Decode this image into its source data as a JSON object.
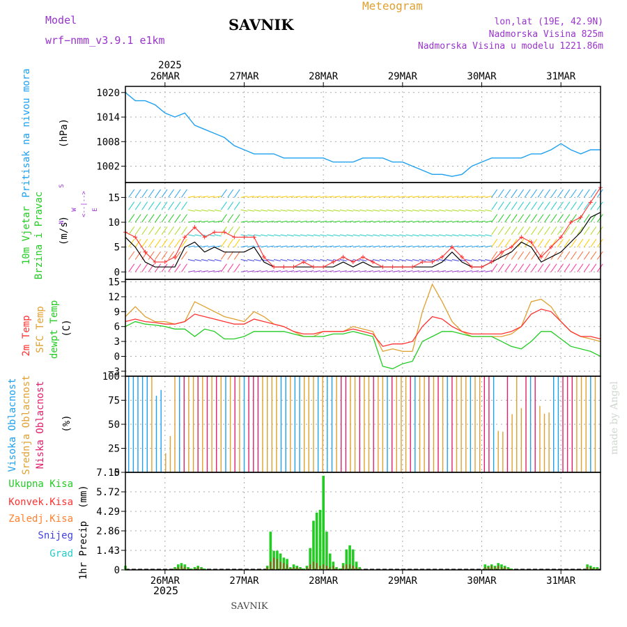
{
  "header": {
    "model_label": "Model",
    "model_name": "wrf−nmm_v3.9.1 e1km",
    "station": "SAVNIK",
    "meteogram": "Meteogram",
    "lonlat": "lon,lat (19E, 42.9N)",
    "altitude": "Nadmorska Visina 825m",
    "model_altitude": "Nadmorska Visina u modelu 1221.86m"
  },
  "footer": {
    "station": "SAVNIK",
    "watermark": "made by Angel"
  },
  "time_axis": {
    "year": "2025",
    "days": [
      "26MAR",
      "27MAR",
      "28MAR",
      "29MAR",
      "30MAR",
      "31MAR"
    ],
    "day_hours": [
      12,
      36,
      60,
      84,
      108,
      132
    ],
    "range": [
      0,
      144
    ]
  },
  "colors": {
    "pressure": "#1ea0f0",
    "wind_speed": "#000000",
    "gust": "#ff3030",
    "temp2m": "#ff3030",
    "sfc_temp": "#e0a030",
    "dewpoint": "#22cc22",
    "cloud_high": "#1ea0f0",
    "cloud_mid": "#e0a030",
    "cloud_low": "#e0206a",
    "rain_total": "#22cc22",
    "rain_conv": "#ff3030",
    "freezing": "#ff8030",
    "snow": "#4040e0",
    "hail": "#22cccc",
    "wind_label": "#22cc22",
    "compass": "#9933cc"
  },
  "chart_data": [
    {
      "type": "line",
      "ylabel": "Pritisak na nivou mora",
      "unit": "(hPa)",
      "yticks": [
        1002,
        1008,
        1014,
        1020
      ],
      "ylim": [
        998,
        1021.5
      ],
      "x": [
        0,
        3,
        6,
        9,
        12,
        15,
        18,
        21,
        24,
        27,
        30,
        33,
        36,
        39,
        42,
        45,
        48,
        51,
        54,
        57,
        60,
        63,
        66,
        69,
        72,
        75,
        78,
        81,
        84,
        87,
        90,
        93,
        96,
        99,
        102,
        105,
        108,
        111,
        114,
        117,
        120,
        123,
        126,
        129,
        132,
        135,
        138,
        141,
        144
      ],
      "series": [
        {
          "values": [
            1020,
            1018,
            1018,
            1017,
            1015,
            1014,
            1015,
            1012,
            1011,
            1010,
            1009,
            1007,
            1006,
            1005,
            1005,
            1005,
            1004,
            1004,
            1004,
            1004,
            1004,
            1003,
            1003,
            1003,
            1004,
            1004,
            1004,
            1003,
            1003,
            1002,
            1001,
            1000,
            1000,
            999.5,
            1000,
            1002,
            1003,
            1004,
            1004,
            1004,
            1004,
            1005,
            1005,
            1006,
            1007.5,
            1006,
            1005,
            1006,
            1006
          ]
        }
      ]
    },
    {
      "type": "line",
      "ylabel": "10m Vjetar Brzina i Pravac",
      "unit": "(m/s)",
      "yticks": [
        0,
        5,
        10,
        15
      ],
      "ylim": [
        -1.5,
        18
      ],
      "x": [
        0,
        3,
        6,
        9,
        12,
        15,
        18,
        21,
        24,
        27,
        30,
        33,
        36,
        39,
        42,
        45,
        48,
        51,
        54,
        57,
        60,
        63,
        66,
        69,
        72,
        75,
        78,
        81,
        84,
        87,
        90,
        93,
        96,
        99,
        102,
        105,
        108,
        111,
        114,
        117,
        120,
        123,
        126,
        129,
        132,
        135,
        138,
        141,
        144
      ],
      "series": [
        {
          "name": "speed",
          "values": [
            7,
            5,
            2,
            1,
            1,
            1,
            5,
            6,
            4,
            5,
            4,
            4,
            4,
            5,
            2,
            1,
            1,
            1,
            1,
            1,
            1,
            1,
            2,
            1,
            2,
            1,
            1,
            1,
            1,
            1,
            1,
            1,
            2,
            4,
            2,
            1,
            1,
            2,
            3,
            4,
            6,
            5,
            2,
            3,
            4,
            6,
            8,
            11,
            12
          ]
        },
        {
          "name": "gust",
          "values": [
            8,
            7,
            4,
            2,
            2,
            3,
            7,
            9,
            7,
            8,
            8,
            7,
            7,
            7,
            3,
            1,
            1,
            1,
            2,
            1,
            1,
            2,
            3,
            2,
            3,
            2,
            1,
            1,
            1,
            1,
            2,
            2,
            3,
            5,
            3,
            1,
            1,
            2,
            4,
            5,
            7,
            6,
            3,
            5,
            7,
            10,
            11,
            14,
            17
          ]
        }
      ]
    },
    {
      "type": "line",
      "ylabels": [
        "2m Temp",
        "SFC Temp",
        "dewpt Temp"
      ],
      "unit": "(C)",
      "yticks": [
        -3,
        0,
        3,
        6,
        9,
        12,
        15
      ],
      "ylim": [
        -4,
        15.5
      ],
      "x": [
        0,
        3,
        6,
        9,
        12,
        15,
        18,
        21,
        24,
        27,
        30,
        33,
        36,
        39,
        42,
        45,
        48,
        51,
        54,
        57,
        60,
        63,
        66,
        69,
        72,
        75,
        78,
        81,
        84,
        87,
        90,
        93,
        96,
        99,
        102,
        105,
        108,
        111,
        114,
        117,
        120,
        123,
        126,
        129,
        132,
        135,
        138,
        141,
        144
      ],
      "series": [
        {
          "name": "2m Temp",
          "values": [
            7,
            7.5,
            7,
            6.8,
            6.5,
            6.5,
            7,
            8.5,
            8,
            7.5,
            7,
            6.5,
            6.5,
            7.5,
            7,
            6.5,
            6,
            5,
            4.5,
            4.5,
            5,
            5,
            5,
            5.5,
            5,
            4.5,
            2,
            2.5,
            2.5,
            3,
            6,
            8,
            7.5,
            6,
            5,
            4.5,
            4.5,
            4.5,
            4.5,
            5,
            6,
            8.5,
            9.5,
            9,
            7,
            5,
            4,
            4,
            3.5
          ]
        },
        {
          "name": "SFC Temp",
          "values": [
            8,
            10,
            8,
            7,
            7,
            6.5,
            7,
            11,
            10,
            9,
            8,
            7.5,
            7,
            9,
            8,
            6.5,
            6,
            5,
            4,
            4,
            5,
            5,
            5,
            6,
            5.5,
            5,
            1,
            1.5,
            1,
            1,
            9,
            14.5,
            11,
            7,
            5,
            4,
            4,
            4,
            4,
            4.5,
            6,
            11,
            11.5,
            10,
            7,
            5,
            4,
            3.5,
            3
          ]
        },
        {
          "name": "dewpt Temp",
          "values": [
            6,
            7,
            6.5,
            6.3,
            6,
            5.5,
            5.5,
            4,
            5.5,
            5,
            3.5,
            3.5,
            4,
            5,
            5,
            5,
            5,
            4.5,
            4,
            4,
            4,
            4.5,
            4.5,
            5,
            4.5,
            4,
            -2,
            -2.5,
            -1.5,
            -1,
            3,
            4,
            5,
            5,
            4.5,
            4,
            4,
            4,
            3,
            2,
            1.5,
            3,
            5,
            5,
            3.5,
            2,
            1.5,
            1,
            0
          ]
        }
      ]
    },
    {
      "type": "bar",
      "ylabels": [
        "Visoka Oblacnost",
        "Srednja Oblacnost",
        "Niska Oblacnost"
      ],
      "unit": "(%)",
      "yticks": [
        0,
        25,
        50,
        75,
        100
      ],
      "ylim": [
        0,
        100
      ]
    },
    {
      "type": "bar",
      "ylabel": "1hr Precip",
      "unit": "(mm)",
      "yticks": [
        0,
        1.43,
        2.86,
        4.29,
        5.72,
        7.15
      ],
      "ylim": [
        0,
        7.15
      ],
      "legend": [
        "Ukupna Kisa",
        "Konvek.Kisa",
        "Zaledj.Kisa",
        "Snijeg",
        "Grad"
      ],
      "x": [
        0,
        15,
        16,
        17,
        18,
        19,
        20,
        21,
        22,
        23,
        24,
        43,
        44,
        45,
        46,
        47,
        48,
        49,
        50,
        51,
        52,
        53,
        54,
        55,
        56,
        57,
        58,
        59,
        60,
        61,
        62,
        63,
        64,
        65,
        66,
        67,
        68,
        69,
        70,
        71,
        109,
        110,
        111,
        112,
        113,
        114,
        115,
        116,
        117,
        140,
        141,
        142,
        143
      ],
      "series": [
        {
          "name": "Ukupna Kisa",
          "values": [
            0.3,
            0.2,
            0.4,
            0.5,
            0.4,
            0.2,
            0.1,
            0.2,
            0.3,
            0.2,
            0.1,
            0.3,
            2.8,
            1.4,
            1.4,
            1.2,
            0.9,
            0.8,
            0.2,
            0.4,
            0.3,
            0.2,
            0.1,
            0.3,
            1.6,
            3.6,
            4.2,
            4.4,
            6.9,
            2.8,
            1.2,
            0.6,
            0.2,
            0.1,
            0.5,
            1.5,
            1.8,
            1.5,
            0.6,
            0.2,
            0.4,
            0.3,
            0.4,
            0.3,
            0.5,
            0.4,
            0.3,
            0.2,
            0.1,
            0.4,
            0.3,
            0.2,
            0.2
          ]
        },
        {
          "name": "Konvek.Kisa",
          "values": [
            0.2,
            0.1,
            0.2,
            0.3,
            0.2,
            0.1,
            0.05,
            0.1,
            0.2,
            0.1,
            0.05,
            0.2,
            0.6,
            0.9,
            0.8,
            0.6,
            0.5,
            0.4,
            0.1,
            0.2,
            0.2,
            0.1,
            0.05,
            0.2,
            0.4,
            0.6,
            0.5,
            0.3,
            0.4,
            0.3,
            0.2,
            0.3,
            0.1,
            0.05,
            0.3,
            0.4,
            0.4,
            0.3,
            0.2,
            0.1,
            0.2,
            0.2,
            0.3,
            0.2,
            0.3,
            0.2,
            0.2,
            0.1,
            0.05,
            0.2,
            0.2,
            0.1,
            0.1
          ]
        }
      ]
    }
  ]
}
